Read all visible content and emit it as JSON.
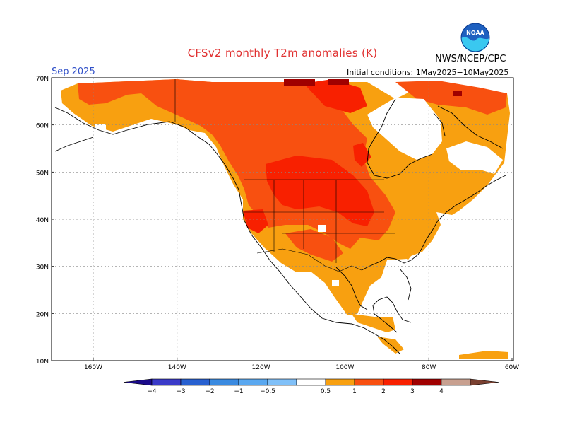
{
  "header": {
    "title": "CFSv2 monthly T2m anomalies (K)",
    "agency": "NWS/NCEP/CPC",
    "valid_month": "Sep 2025",
    "initial_conditions": "Initial conditions: 1May2025−10May2025",
    "logo_text": "NOAA"
  },
  "colors": {
    "title": "#e03030",
    "valid_month": "#3050c8",
    "coast": "#000000",
    "grid": "#888888"
  },
  "map": {
    "lat_labels": [
      "70N",
      "60N",
      "50N",
      "40N",
      "30N",
      "20N",
      "10N"
    ],
    "lon_labels": [
      "160W",
      "140W",
      "120W",
      "100W",
      "80W",
      "60W"
    ]
  },
  "colorbar": {
    "colors": [
      "#1a0a8a",
      "#3a3ac8",
      "#2860d0",
      "#3a8ae0",
      "#5aa8f0",
      "#80c0f8",
      "#ffffff",
      "#f8a010",
      "#f85010",
      "#f82000",
      "#a00000",
      "#c8a090",
      "#7a4030"
    ],
    "labels": [
      "−4",
      "−3",
      "−2",
      "−1",
      "−0.5",
      "0.5",
      "1",
      "2",
      "3",
      "4"
    ]
  }
}
